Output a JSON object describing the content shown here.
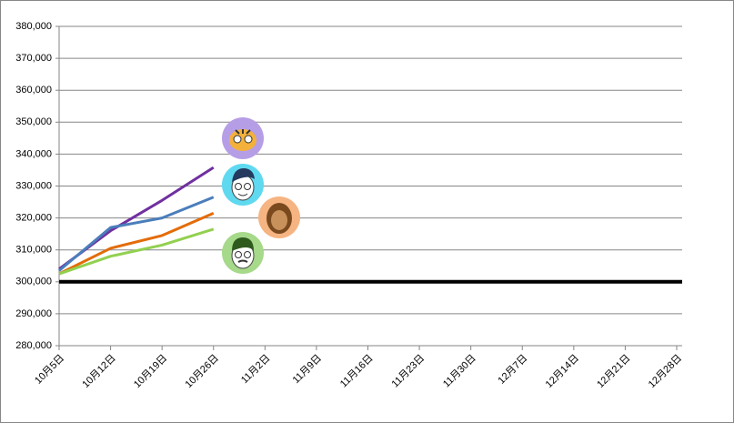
{
  "chart_data": {
    "type": "line",
    "categories": [
      "10月5日",
      "10月12日",
      "10月19日",
      "10月26日",
      "11月2日",
      "11月9日",
      "11月16日",
      "11月23日",
      "11月30日",
      "12月7日",
      "12月14日",
      "12月21日",
      "12月28日"
    ],
    "series": [
      {
        "color": "#7030a0",
        "values": [
          304000,
          316000,
          325500,
          335800,
          null,
          null,
          null,
          null,
          null,
          null,
          null,
          null,
          null
        ]
      },
      {
        "color": "#4a7ebb",
        "values": [
          303500,
          317000,
          320000,
          326500,
          null,
          null,
          null,
          null,
          null,
          null,
          null,
          null,
          null
        ]
      },
      {
        "color": "#e36c09",
        "values": [
          302500,
          310500,
          314500,
          321500,
          null,
          null,
          null,
          null,
          null,
          null,
          null,
          null,
          null
        ]
      },
      {
        "color": "#92d050",
        "values": [
          302500,
          308000,
          311500,
          316500,
          null,
          null,
          null,
          null,
          null,
          null,
          null,
          null,
          null
        ]
      }
    ],
    "ylim": [
      280000,
      380000
    ],
    "yticks": [
      {
        "value": 280000,
        "label": "280,000"
      },
      {
        "value": 290000,
        "label": "290,000"
      },
      {
        "value": 300000,
        "label": "300,000"
      },
      {
        "value": 310000,
        "label": "310,000"
      },
      {
        "value": 320000,
        "label": "320,000"
      },
      {
        "value": 330000,
        "label": "330,000"
      },
      {
        "value": 340000,
        "label": "340,000"
      },
      {
        "value": 350000,
        "label": "350,000"
      },
      {
        "value": 360000,
        "label": "360,000"
      },
      {
        "value": 370000,
        "label": "370,000"
      },
      {
        "value": 380000,
        "label": "380,000"
      }
    ],
    "grid": true,
    "reference_line": {
      "value": 300000,
      "color": "#000000"
    }
  }
}
